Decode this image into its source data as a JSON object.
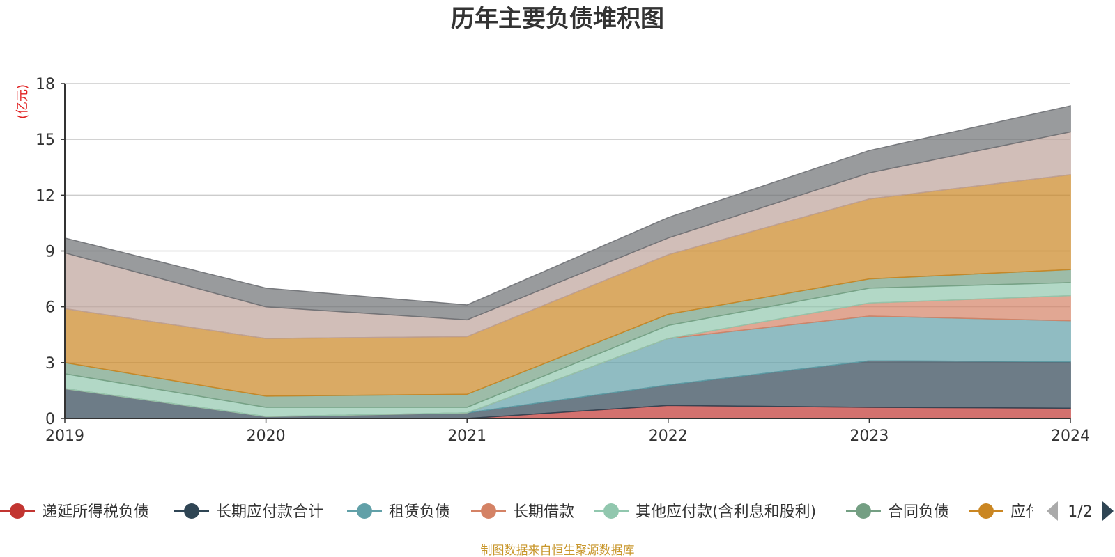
{
  "chart_data": {
    "type": "area",
    "title": "历年主要负债堆积图",
    "unit_label": "(亿元)",
    "x": [
      "2019",
      "2020",
      "2021",
      "2022",
      "2023",
      "2024"
    ],
    "ylim": [
      0,
      18
    ],
    "yticks": [
      "0",
      "3",
      "6",
      "9",
      "12",
      "15",
      "18"
    ],
    "grid": true,
    "stacked": true,
    "series": [
      {
        "name": "递延所得税负债",
        "color": "#c23531",
        "values": [
          0,
          0,
          0,
          0.7,
          0.6,
          0.55
        ]
      },
      {
        "name": "长期应付款合计",
        "color": "#2f4554",
        "values": [
          1.6,
          0.1,
          0.3,
          1.1,
          2.5,
          2.5
        ]
      },
      {
        "name": "租赁负债",
        "color": "#61a0a8",
        "values": [
          0,
          0,
          0,
          2.5,
          2.4,
          2.2
        ]
      },
      {
        "name": "长期借款",
        "color": "#d48265",
        "values": [
          0,
          0,
          0,
          0,
          0.7,
          1.35
        ]
      },
      {
        "name": "其他应付款(含利息和股利)",
        "color": "#91c7ae",
        "values": [
          0.8,
          0.5,
          0.3,
          0.7,
          0.8,
          0.7
        ]
      },
      {
        "name": "合同负债",
        "color": "#749f83",
        "values": [
          0.6,
          0.6,
          0.7,
          0.6,
          0.5,
          0.7
        ]
      },
      {
        "name": "应付",
        "color": "#ca8622",
        "values": [
          2.9,
          3.1,
          3.1,
          3.2,
          4.3,
          5.1
        ]
      },
      {
        "name": "",
        "color": "#bda29a",
        "values": [
          3.0,
          1.7,
          0.9,
          0.9,
          1.4,
          2.3
        ]
      },
      {
        "name": "",
        "color": "#6e7074",
        "values": [
          0.8,
          1.0,
          0.8,
          1.1,
          1.2,
          1.4
        ]
      }
    ]
  },
  "legend": {
    "items": [
      {
        "label": "递延所得税负债",
        "color": "#c23531"
      },
      {
        "label": "长期应付款合计",
        "color": "#2f4554"
      },
      {
        "label": "租赁负债",
        "color": "#61a0a8"
      },
      {
        "label": "长期借款",
        "color": "#d48265"
      },
      {
        "label": "其他应付款(含利息和股利)",
        "color": "#91c7ae"
      },
      {
        "label": "合同负债",
        "color": "#749f83"
      },
      {
        "label": "应付",
        "color": "#ca8622"
      }
    ],
    "page_indicator": "1/2",
    "prev_icon": "triangle-left-icon",
    "next_icon": "triangle-right-icon"
  },
  "footer": {
    "source_text": "制图数据来自恒生聚源数据库"
  }
}
